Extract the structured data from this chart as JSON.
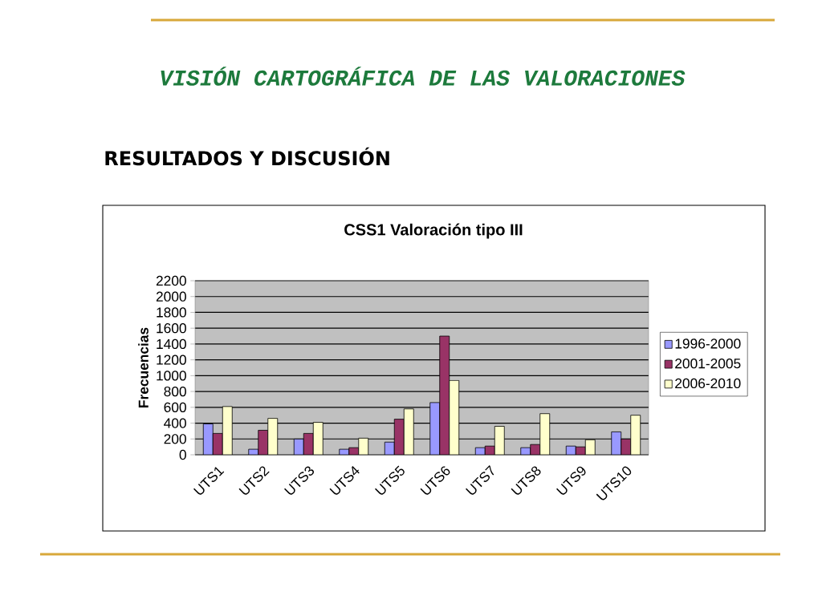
{
  "chart_data": {
    "type": "bar",
    "title": "CSS1 Valoración tipo III",
    "ylabel": "Frecuencias",
    "annotations": [
      "VISIÓN CARTOGRÁFICA DE LAS VALORACIONES",
      "RESULTADOS Y DISCUSIÓN"
    ],
    "categories": [
      "UTS1",
      "UTS2",
      "UTS3",
      "UTS4",
      "UTS5",
      "UTS6",
      "UTS7",
      "UTS8",
      "UTS9",
      "UTS10"
    ],
    "series": [
      {
        "name": "1996-2000",
        "color": "#9999ff",
        "values": [
          390,
          70,
          200,
          70,
          160,
          660,
          90,
          90,
          110,
          290
        ]
      },
      {
        "name": "2001-2005",
        "color": "#993366",
        "values": [
          270,
          310,
          270,
          90,
          450,
          1500,
          110,
          130,
          100,
          200
        ]
      },
      {
        "name": "2006-2010",
        "color": "#ffffcc",
        "values": [
          610,
          460,
          410,
          210,
          580,
          940,
          360,
          520,
          190,
          500
        ]
      }
    ],
    "ylim": [
      0,
      2200
    ],
    "yticks": [
      0,
      200,
      400,
      600,
      800,
      1000,
      1200,
      1400,
      1600,
      1800,
      2000,
      2200
    ],
    "grid": "y",
    "legend": "right"
  }
}
